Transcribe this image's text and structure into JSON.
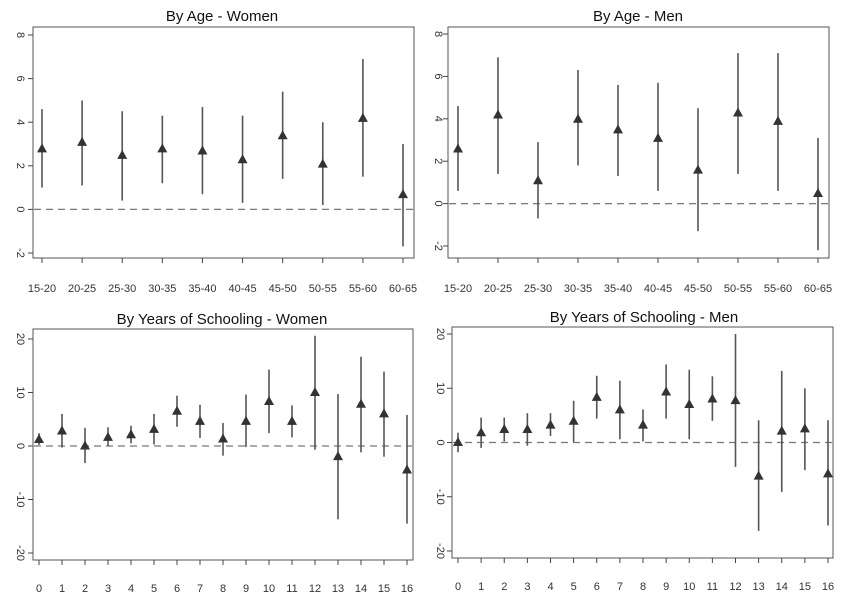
{
  "chart_data": [
    {
      "type": "scatter",
      "subtype": "coefficient plot with confidence intervals",
      "title": "By Age - Women",
      "xlabel": "",
      "ylabel": "",
      "categories": [
        "15-20",
        "20-25",
        "25-30",
        "30-35",
        "35-40",
        "40-45",
        "45-50",
        "50-55",
        "55-60",
        "60-65"
      ],
      "values": [
        2.8,
        3.1,
        2.5,
        2.8,
        2.7,
        2.3,
        3.4,
        2.1,
        4.2,
        0.7
      ],
      "ci_low": [
        1.0,
        1.1,
        0.4,
        1.2,
        0.7,
        0.3,
        1.4,
        0.2,
        1.5,
        -1.7
      ],
      "ci_high": [
        4.6,
        5.0,
        4.5,
        4.3,
        4.7,
        4.3,
        5.4,
        4.0,
        6.9,
        3.0
      ],
      "yticks": [
        "-2",
        "0",
        "2",
        "4",
        "6",
        "8"
      ],
      "ylim": [
        -2,
        8
      ],
      "reference_line": 0
    },
    {
      "type": "scatter",
      "subtype": "coefficient plot with confidence intervals",
      "title": "By Age - Men",
      "xlabel": "",
      "ylabel": "",
      "categories": [
        "15-20",
        "20-25",
        "25-30",
        "30-35",
        "35-40",
        "40-45",
        "45-50",
        "50-55",
        "55-60",
        "60-65"
      ],
      "values": [
        2.6,
        4.2,
        1.1,
        4.0,
        3.5,
        3.1,
        1.6,
        4.3,
        3.9,
        0.5
      ],
      "ci_low": [
        0.6,
        1.4,
        -0.7,
        1.8,
        1.3,
        0.6,
        -1.3,
        1.4,
        0.6,
        -2.2
      ],
      "ci_high": [
        4.6,
        6.9,
        2.9,
        6.3,
        5.6,
        5.7,
        4.5,
        7.1,
        7.1,
        3.1
      ],
      "yticks": [
        "-2",
        "0",
        "2",
        "4",
        "6",
        "8"
      ],
      "ylim": [
        -2,
        8
      ],
      "reference_line": 0
    },
    {
      "type": "scatter",
      "subtype": "coefficient plot with confidence intervals",
      "title": "By Years of Schooling - Women",
      "xlabel": "",
      "ylabel": "",
      "categories": [
        "0",
        "1",
        "2",
        "3",
        "4",
        "5",
        "6",
        "7",
        "8",
        "9",
        "10",
        "11",
        "12",
        "13",
        "14",
        "15",
        "16"
      ],
      "values": [
        1.3,
        2.9,
        0.1,
        1.7,
        2.2,
        3.2,
        6.6,
        4.7,
        1.4,
        4.7,
        8.4,
        4.7,
        10.1,
        -1.9,
        7.9,
        6.1,
        -4.4
      ],
      "ci_low": [
        0.2,
        -0.3,
        -3.2,
        0.0,
        0.5,
        0.3,
        3.6,
        1.5,
        -1.8,
        -0.2,
        2.4,
        1.6,
        -0.7,
        -13.7,
        -1.2,
        -2.0,
        -14.5
      ],
      "ci_high": [
        2.4,
        6.0,
        3.4,
        3.5,
        3.8,
        6.0,
        9.4,
        7.7,
        4.3,
        9.6,
        14.3,
        7.6,
        20.6,
        9.7,
        16.7,
        13.9,
        5.8
      ],
      "yticks": [
        "-20",
        "-10",
        "0",
        "10",
        "20"
      ],
      "ylim": [
        -20,
        20
      ],
      "reference_line": 0
    },
    {
      "type": "scatter",
      "subtype": "coefficient plot with confidence intervals",
      "title": "By Years of Schooling - Men",
      "xlabel": "",
      "ylabel": "",
      "categories": [
        "0",
        "1",
        "2",
        "3",
        "4",
        "5",
        "6",
        "7",
        "8",
        "9",
        "10",
        "11",
        "12",
        "13",
        "14",
        "15",
        "16"
      ],
      "values": [
        0.1,
        1.9,
        2.5,
        2.5,
        3.3,
        4.0,
        8.4,
        6.1,
        3.3,
        9.4,
        7.1,
        8.1,
        7.8,
        -6.1,
        2.2,
        2.6,
        -5.7
      ],
      "ci_low": [
        -1.8,
        -1.0,
        0.2,
        -0.6,
        1.2,
        0.1,
        4.4,
        0.6,
        0.2,
        4.4,
        0.6,
        4.0,
        -4.5,
        -16.3,
        -9.1,
        -5.1,
        -15.3
      ],
      "ci_high": [
        1.8,
        4.6,
        4.6,
        5.4,
        5.4,
        7.7,
        12.3,
        11.4,
        6.1,
        14.4,
        13.4,
        12.2,
        20.0,
        4.1,
        13.2,
        10.0,
        4.1
      ],
      "yticks": [
        "-20",
        "-10",
        "0",
        "10",
        "20"
      ],
      "ylim": [
        -20,
        20
      ],
      "reference_line": 0
    }
  ]
}
